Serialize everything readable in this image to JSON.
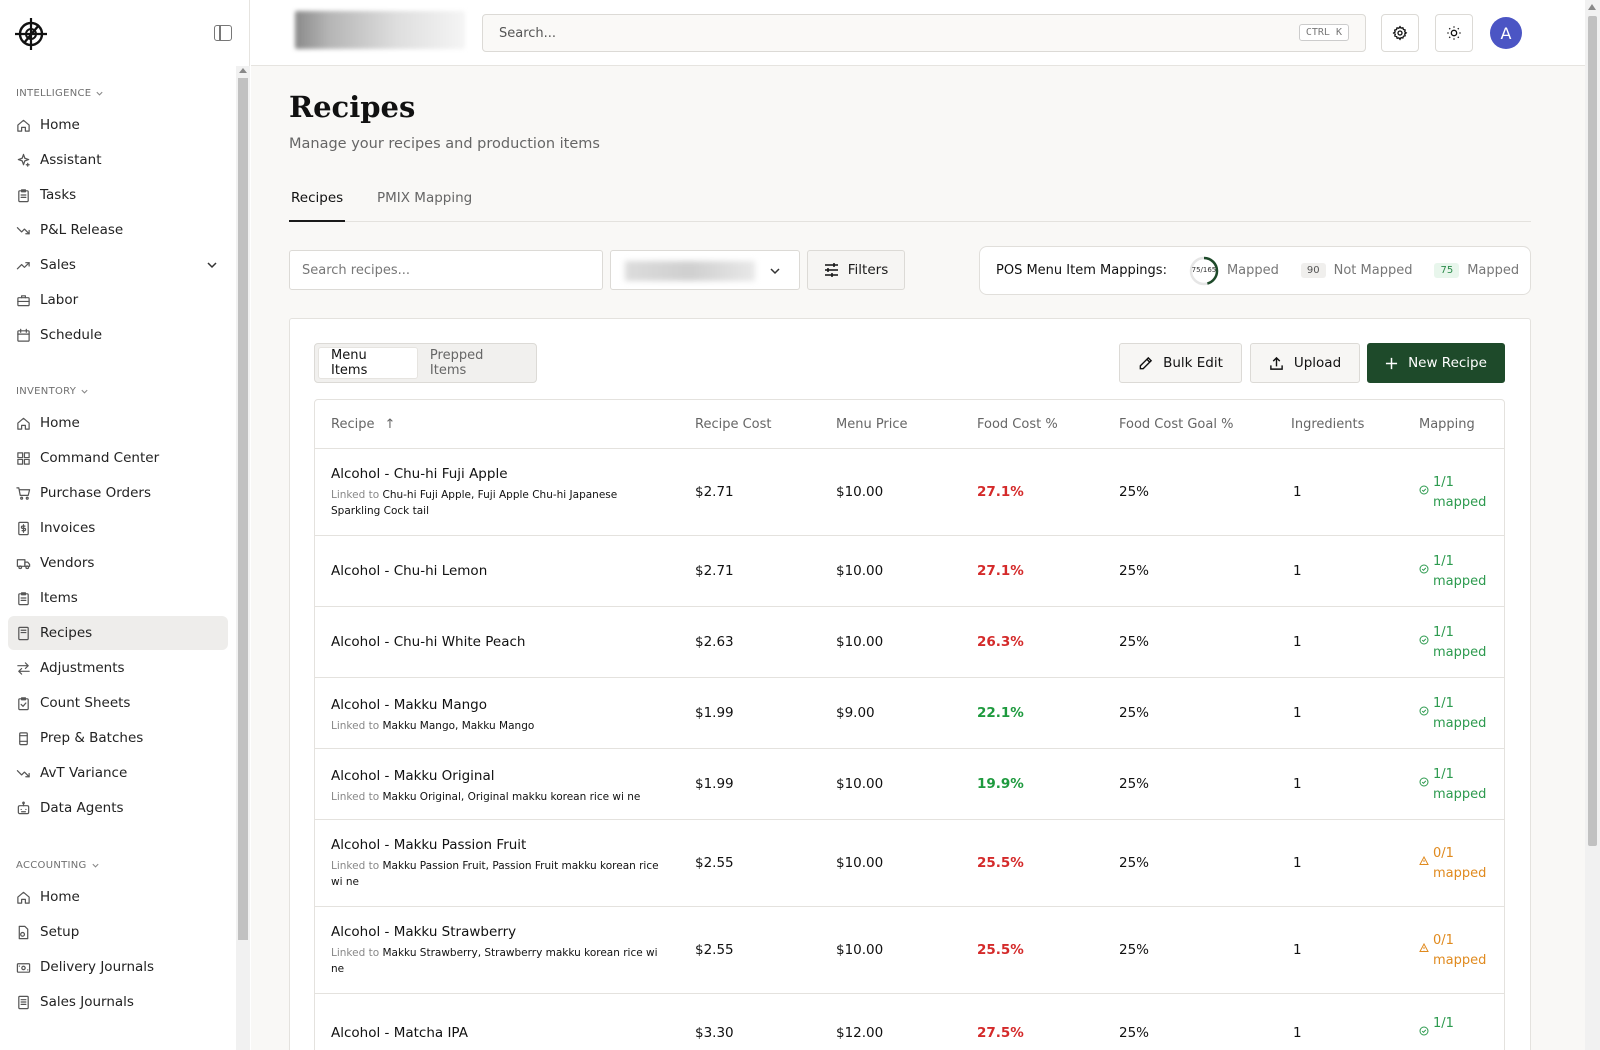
{
  "sidebar": {
    "sections": [
      {
        "label": "INTELLIGENCE",
        "items": [
          {
            "label": "Home",
            "icon": "home-icon"
          },
          {
            "label": "Assistant",
            "icon": "sparkle-icon"
          },
          {
            "label": "Tasks",
            "icon": "clipboard-icon"
          },
          {
            "label": "P&L Release",
            "icon": "trend-down-icon"
          },
          {
            "label": "Sales",
            "icon": "trend-up-icon",
            "expandable": true
          },
          {
            "label": "Labor",
            "icon": "briefcase-icon"
          },
          {
            "label": "Schedule",
            "icon": "calendar-icon"
          }
        ]
      },
      {
        "label": "INVENTORY",
        "items": [
          {
            "label": "Home",
            "icon": "home-icon"
          },
          {
            "label": "Command Center",
            "icon": "grid-icon"
          },
          {
            "label": "Purchase Orders",
            "icon": "cart-icon"
          },
          {
            "label": "Invoices",
            "icon": "dollar-doc-icon"
          },
          {
            "label": "Vendors",
            "icon": "truck-icon"
          },
          {
            "label": "Items",
            "icon": "clipboard-icon"
          },
          {
            "label": "Recipes",
            "icon": "book-icon",
            "active": true
          },
          {
            "label": "Adjustments",
            "icon": "arrows-icon"
          },
          {
            "label": "Count Sheets",
            "icon": "clipboard-check-icon"
          },
          {
            "label": "Prep & Batches",
            "icon": "jar-icon"
          },
          {
            "label": "AvT Variance",
            "icon": "trend-down-icon"
          },
          {
            "label": "Data Agents",
            "icon": "bot-icon"
          }
        ]
      },
      {
        "label": "ACCOUNTING",
        "items": [
          {
            "label": "Home",
            "icon": "home-icon"
          },
          {
            "label": "Setup",
            "icon": "doc-gear-icon"
          },
          {
            "label": "Delivery Journals",
            "icon": "wallet-icon"
          },
          {
            "label": "Sales Journals",
            "icon": "doc-icon"
          }
        ]
      }
    ]
  },
  "topbar": {
    "search_placeholder": "Search...",
    "shortcut": "CTRL K",
    "avatar_initial": "A"
  },
  "page": {
    "title": "Recipes",
    "subtitle": "Manage your recipes and production items",
    "tabs": [
      "Recipes",
      "PMIX Mapping"
    ],
    "active_tab": "Recipes"
  },
  "filters": {
    "search_placeholder": "Search recipes...",
    "filters_label": "Filters"
  },
  "pos_mappings": {
    "title": "POS Menu Item Mappings:",
    "ring_text": "75/165",
    "ring_fraction": 0.4545,
    "mapped_label": "Mapped",
    "not_mapped_count": "90",
    "not_mapped_label": "Not Mapped",
    "mapped_count": "75",
    "mapped_label_2": "Mapped"
  },
  "card": {
    "segments": [
      "Menu Items",
      "Prepped Items"
    ],
    "active_segment": "Menu Items",
    "bulk_edit": "Bulk Edit",
    "upload": "Upload",
    "new_recipe": "New Recipe"
  },
  "table": {
    "columns": [
      "Recipe",
      "Recipe Cost",
      "Menu Price",
      "Food Cost %",
      "Food Cost Goal %",
      "Ingredients",
      "Mapping"
    ],
    "sort_indicator": "↑",
    "linked_prefix": "Linked to",
    "rows": [
      {
        "name": "Alcohol - Chu-hi Fuji Apple",
        "linked": "Chu-hi Fuji Apple, Fuji Apple Chu-hi Japanese Sparkling Cock tail",
        "cost": "$2.71",
        "price": "$10.00",
        "food_cost": "27.1%",
        "food_cost_status": "red",
        "goal": "25%",
        "ingredients": "1",
        "mapping_count": "1/1",
        "mapping_label": "mapped",
        "mapping_status": "ok"
      },
      {
        "name": "Alcohol - Chu-hi Lemon",
        "linked": "",
        "cost": "$2.71",
        "price": "$10.00",
        "food_cost": "27.1%",
        "food_cost_status": "red",
        "goal": "25%",
        "ingredients": "1",
        "mapping_count": "1/1",
        "mapping_label": "mapped",
        "mapping_status": "ok"
      },
      {
        "name": "Alcohol - Chu-hi White Peach",
        "linked": "",
        "cost": "$2.63",
        "price": "$10.00",
        "food_cost": "26.3%",
        "food_cost_status": "red",
        "goal": "25%",
        "ingredients": "1",
        "mapping_count": "1/1",
        "mapping_label": "mapped",
        "mapping_status": "ok"
      },
      {
        "name": "Alcohol - Makku Mango",
        "linked": "Makku Mango, Makku Mango",
        "cost": "$1.99",
        "price": "$9.00",
        "food_cost": "22.1%",
        "food_cost_status": "green",
        "goal": "25%",
        "ingredients": "1",
        "mapping_count": "1/1",
        "mapping_label": "mapped",
        "mapping_status": "ok"
      },
      {
        "name": "Alcohol - Makku Original",
        "linked": "Makku Original, Original makku korean rice wi ne",
        "cost": "$1.99",
        "price": "$10.00",
        "food_cost": "19.9%",
        "food_cost_status": "green",
        "goal": "25%",
        "ingredients": "1",
        "mapping_count": "1/1",
        "mapping_label": "mapped",
        "mapping_status": "ok"
      },
      {
        "name": "Alcohol - Makku Passion Fruit",
        "linked": "Makku Passion Fruit, Passion Fruit makku korean rice wi ne",
        "cost": "$2.55",
        "price": "$10.00",
        "food_cost": "25.5%",
        "food_cost_status": "red",
        "goal": "25%",
        "ingredients": "1",
        "mapping_count": "0/1",
        "mapping_label": "mapped",
        "mapping_status": "warn"
      },
      {
        "name": "Alcohol - Makku Strawberry",
        "linked": "Makku Strawberry, Strawberry makku korean rice wi ne",
        "cost": "$2.55",
        "price": "$10.00",
        "food_cost": "25.5%",
        "food_cost_status": "red",
        "goal": "25%",
        "ingredients": "1",
        "mapping_count": "0/1",
        "mapping_label": "mapped",
        "mapping_status": "warn"
      },
      {
        "name": "Alcohol - Matcha IPA",
        "linked": "",
        "cost": "$3.30",
        "price": "$12.00",
        "food_cost": "27.5%",
        "food_cost_status": "red",
        "goal": "25%",
        "ingredients": "1",
        "mapping_count": "1/1",
        "mapping_label": "",
        "mapping_status": "ok"
      }
    ]
  }
}
